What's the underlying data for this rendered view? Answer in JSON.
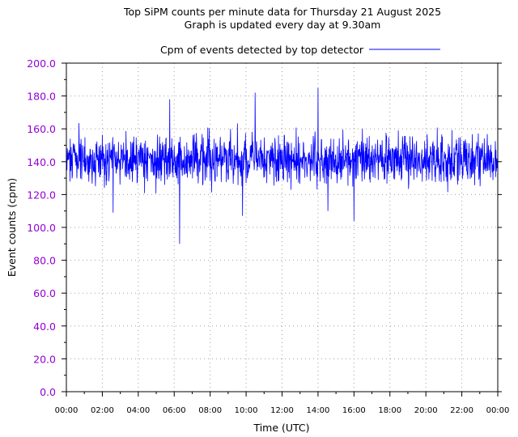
{
  "chart_data": {
    "type": "line",
    "title": "Top SiPM counts per minute data for Thursday 21 August 2025",
    "subtitle": "Graph is updated every day at 9.30am",
    "xlabel": "Time (UTC)",
    "ylabel": "Event counts (cpm)",
    "ylim": [
      0,
      200
    ],
    "yticks": [
      "0.0",
      "20.0",
      "40.0",
      "60.0",
      "80.0",
      "100.0",
      "120.0",
      "140.0",
      "160.0",
      "180.0",
      "200.0"
    ],
    "xlim": [
      "00:00",
      "24:00"
    ],
    "xticks": [
      "00:00",
      "02:00",
      "04:00",
      "06:00",
      "08:00",
      "10:00",
      "12:00",
      "14:00",
      "16:00",
      "18:00",
      "20:00",
      "22:00",
      "00:00"
    ],
    "grid": true,
    "legend_position": "top",
    "series": [
      {
        "name": "Cpm of events detected by top detector",
        "color": "#0000ff",
        "x_unit": "hours (UTC)",
        "typical_range": [
          122,
          160
        ],
        "mean": 141,
        "notable_points": [
          {
            "x": 5.75,
            "y": 178
          },
          {
            "x": 6.3,
            "y": 90
          },
          {
            "x": 10.5,
            "y": 182
          },
          {
            "x": 14.0,
            "y": 185
          },
          {
            "x": 9.8,
            "y": 107
          },
          {
            "x": 16.0,
            "y": 104
          },
          {
            "x": 14.55,
            "y": 110
          },
          {
            "x": 2.6,
            "y": 109
          }
        ]
      }
    ]
  },
  "colors": {
    "axis_text": "#9400d3",
    "series": "#0000ff",
    "grid": "#a0a0a0"
  }
}
